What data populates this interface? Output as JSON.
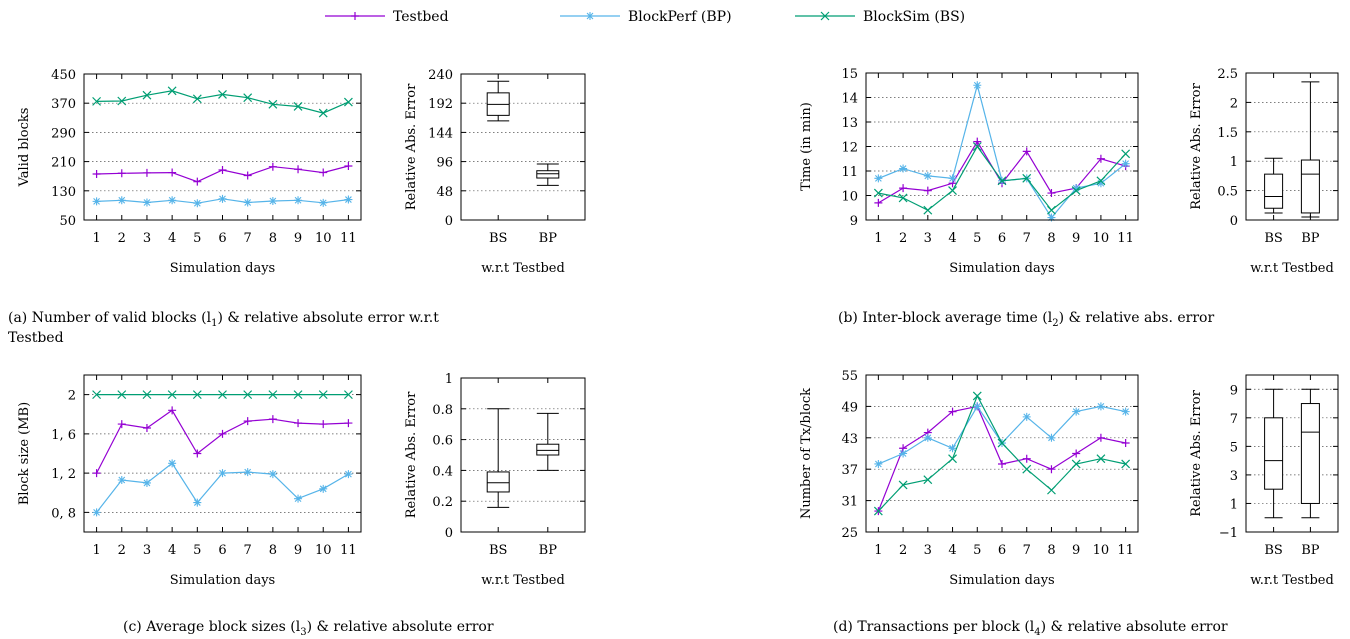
{
  "legend": [
    {
      "name": "Testbed",
      "color": "#9400d3",
      "marker": "plus"
    },
    {
      "name": "BlockPerf (BP)",
      "color": "#56b4e9",
      "marker": "star"
    },
    {
      "name": "BlockSim (BS)",
      "color": "#009e73",
      "marker": "cross"
    }
  ],
  "captions": {
    "a1": "(a)  Number  of  valid  blocks  (l",
    "a1sub": "1",
    "a2": ")  &  relative  absolute  error  w.r.t",
    "a3": "Testbed",
    "b1": "(b)  Inter-block average time (l",
    "bsub": "2",
    "b2": ") & relative abs. error",
    "c1": "(c)  Average block sizes (l",
    "csub": "3",
    "c2": ") & relative absolute error",
    "d1": "(d)  Transactions per block (l",
    "dsub": "4",
    "d2": ") & relative absolute error"
  },
  "chart_data": [
    {
      "id": "a-line",
      "type": "line",
      "xlabel": "Simulation days",
      "ylabel": "Valid blocks",
      "x": [
        1,
        2,
        3,
        4,
        5,
        6,
        7,
        8,
        9,
        10,
        11
      ],
      "xticks": [
        "1",
        "2",
        "3",
        "4",
        "5",
        "6",
        "7",
        "8",
        "9",
        "10",
        "11"
      ],
      "ylim": [
        50,
        450
      ],
      "yticks": [
        50,
        130,
        210,
        290,
        370,
        450
      ],
      "yticklabels": [
        "50",
        "130",
        "210",
        "290",
        "370",
        "450"
      ],
      "grid": true,
      "series": [
        {
          "name": "Testbed",
          "values": [
            176,
            178,
            179,
            180,
            155,
            187,
            172,
            196,
            189,
            180,
            198
          ]
        },
        {
          "name": "BlockPerf (BP)",
          "values": [
            101,
            104,
            98,
            104,
            96,
            108,
            98,
            102,
            104,
            97,
            106
          ]
        },
        {
          "name": "BlockSim (BS)",
          "values": [
            375,
            376,
            392,
            404,
            382,
            394,
            385,
            367,
            361,
            343,
            373
          ]
        }
      ]
    },
    {
      "id": "a-box",
      "type": "box",
      "xlabel": "w.r.t Testbed",
      "ylabel": "Relative Abs. Error",
      "categories": [
        "BS",
        "BP"
      ],
      "ylim": [
        0,
        240
      ],
      "yticks": [
        0,
        48,
        96,
        144,
        192,
        240
      ],
      "yticklabels": [
        "0",
        "48",
        "96",
        "144",
        "192",
        "240"
      ],
      "grid": true,
      "boxes": [
        {
          "min": 163,
          "q1": 172,
          "median": 190,
          "q3": 209,
          "max": 228
        },
        {
          "min": 57,
          "q1": 69,
          "median": 76,
          "q3": 81,
          "max": 92
        }
      ]
    },
    {
      "id": "b-line",
      "type": "line",
      "xlabel": "Simulation days",
      "ylabel": "Time (in min)",
      "x": [
        1,
        2,
        3,
        4,
        5,
        6,
        7,
        8,
        9,
        10,
        11
      ],
      "xticks": [
        "1",
        "2",
        "3",
        "4",
        "5",
        "6",
        "7",
        "8",
        "9",
        "10",
        "11"
      ],
      "ylim": [
        9,
        15
      ],
      "yticks": [
        9,
        10,
        11,
        12,
        13,
        14,
        15
      ],
      "yticklabels": [
        "9",
        "10",
        "11",
        "12",
        "13",
        "14",
        "15"
      ],
      "grid": true,
      "series": [
        {
          "name": "Testbed",
          "values": [
            9.7,
            10.3,
            10.2,
            10.5,
            12.2,
            10.5,
            11.8,
            10.1,
            10.3,
            11.5,
            11.2
          ]
        },
        {
          "name": "BlockPerf (BP)",
          "values": [
            10.7,
            11.1,
            10.8,
            10.7,
            14.5,
            10.6,
            10.7,
            9.1,
            10.3,
            10.5,
            11.3
          ]
        },
        {
          "name": "BlockSim (BS)",
          "values": [
            10.1,
            9.9,
            9.4,
            10.2,
            12.0,
            10.6,
            10.7,
            9.4,
            10.2,
            10.6,
            11.7
          ]
        }
      ]
    },
    {
      "id": "b-box",
      "type": "box",
      "xlabel": "w.r.t Testbed",
      "ylabel": "Relative Abs. Error",
      "categories": [
        "BS",
        "BP"
      ],
      "ylim": [
        0,
        2.5
      ],
      "yticks": [
        0,
        0.5,
        1,
        1.5,
        2,
        2.5
      ],
      "yticklabels": [
        "0",
        "0.5",
        "1",
        "1.5",
        "2",
        "2.5"
      ],
      "grid": true,
      "boxes": [
        {
          "min": 0.12,
          "q1": 0.2,
          "median": 0.4,
          "q3": 0.78,
          "max": 1.05
        },
        {
          "min": 0.05,
          "q1": 0.12,
          "median": 0.78,
          "q3": 1.02,
          "max": 2.35
        }
      ]
    },
    {
      "id": "c-line",
      "type": "line",
      "xlabel": "Simulation days",
      "ylabel": "Block size (MB)",
      "x": [
        1,
        2,
        3,
        4,
        5,
        6,
        7,
        8,
        9,
        10,
        11
      ],
      "xticks": [
        "1",
        "2",
        "3",
        "4",
        "5",
        "6",
        "7",
        "8",
        "9",
        "10",
        "11"
      ],
      "ylim": [
        0.6,
        2.2
      ],
      "yticks": [
        0.8,
        1.2,
        1.6,
        2.0
      ],
      "yticklabels": [
        "0, 8",
        "1, 2",
        "1, 6",
        "2"
      ],
      "grid": true,
      "series": [
        {
          "name": "Testbed",
          "values": [
            1.2,
            1.7,
            1.66,
            1.84,
            1.4,
            1.6,
            1.73,
            1.75,
            1.71,
            1.7,
            1.71
          ]
        },
        {
          "name": "BlockPerf (BP)",
          "values": [
            0.8,
            1.13,
            1.1,
            1.3,
            0.9,
            1.2,
            1.21,
            1.19,
            0.94,
            1.04,
            1.19
          ]
        },
        {
          "name": "BlockSim (BS)",
          "values": [
            2,
            2,
            2,
            2,
            2,
            2,
            2,
            2,
            2,
            2,
            2
          ]
        }
      ]
    },
    {
      "id": "c-box",
      "type": "box",
      "xlabel": "w.r.t Testbed",
      "ylabel": "Relative Abs. Error",
      "categories": [
        "BS",
        "BP"
      ],
      "ylim": [
        0,
        1
      ],
      "yticks": [
        0,
        0.2,
        0.4,
        0.6,
        0.8,
        1
      ],
      "yticklabels": [
        "0",
        "0.2",
        "0.4",
        "0.6",
        "0.8",
        "1"
      ],
      "grid": true,
      "boxes": [
        {
          "min": 0.16,
          "q1": 0.26,
          "median": 0.32,
          "q3": 0.39,
          "max": 0.8
        },
        {
          "min": 0.4,
          "q1": 0.5,
          "median": 0.53,
          "q3": 0.57,
          "max": 0.77
        }
      ]
    },
    {
      "id": "d-line",
      "type": "line",
      "xlabel": "Simulation days",
      "ylabel": "Number of Tx/block",
      "x": [
        1,
        2,
        3,
        4,
        5,
        6,
        7,
        8,
        9,
        10,
        11
      ],
      "xticks": [
        "1",
        "2",
        "3",
        "4",
        "5",
        "6",
        "7",
        "8",
        "9",
        "10",
        "11"
      ],
      "ylim": [
        25,
        55
      ],
      "yticks": [
        25,
        31,
        37,
        43,
        49,
        55
      ],
      "yticklabels": [
        "25",
        "31",
        "37",
        "43",
        "49",
        "55"
      ],
      "grid": true,
      "series": [
        {
          "name": "Testbed",
          "values": [
            29,
            41,
            44,
            48,
            49,
            38,
            39,
            37,
            40,
            43,
            42
          ]
        },
        {
          "name": "BlockPerf (BP)",
          "values": [
            38,
            40,
            43,
            41,
            49,
            42,
            47,
            43,
            48,
            49,
            48
          ]
        },
        {
          "name": "BlockSim (BS)",
          "values": [
            29,
            34,
            35,
            39,
            51,
            42,
            37,
            33,
            38,
            39,
            38
          ]
        }
      ]
    },
    {
      "id": "d-box",
      "type": "box",
      "xlabel": "w.r.t Testbed",
      "ylabel": "Relative Abs. Error",
      "categories": [
        "BS",
        "BP"
      ],
      "ylim": [
        -1,
        10
      ],
      "yticks": [
        -1,
        1,
        3,
        5,
        7,
        9
      ],
      "yticklabels": [
        "−1",
        "1",
        "3",
        "5",
        "7",
        "9"
      ],
      "grid": true,
      "boxes": [
        {
          "min": 0,
          "q1": 2,
          "median": 4,
          "q3": 7,
          "max": 9
        },
        {
          "min": 0,
          "q1": 1,
          "median": 6,
          "q3": 8,
          "max": 9
        }
      ]
    }
  ]
}
